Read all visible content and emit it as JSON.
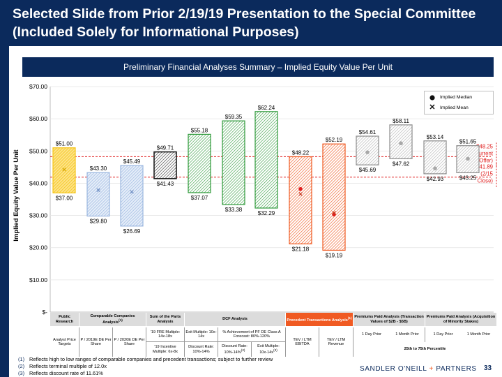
{
  "header": {
    "title_line1": "Selected Slide from Prior 2/19/19 Presentation to the Special Committee",
    "title_line2": "(Included Solely for Informational Purposes)",
    "section_title": "Preliminary Financial Analyses Summary – Implied Equity Value Per Unit"
  },
  "colors": {
    "navy": "#0b2a5c",
    "orange": "#f05a22",
    "yellow": "#f5c518",
    "blue": "#9bb7e0",
    "black": "#111111",
    "green": "#2e9a3a",
    "gray": "#8c8c8c",
    "ref_line": "#e02020"
  },
  "chart_data": {
    "type": "floating-bar",
    "ylabel": "Implied Equity Value Per Unit",
    "ylim": [
      0,
      70
    ],
    "yticks": [
      0,
      10,
      20,
      30,
      40,
      50,
      60,
      70
    ],
    "ytick_labels": [
      "$-",
      "$10.00",
      "$20.00",
      "$30.00",
      "$40.00",
      "$50.00",
      "$60.00",
      "$70.00"
    ],
    "legend": {
      "median_label": "Implied Median",
      "mean_label": "Implied Mean",
      "placement": "top-right"
    },
    "reference_lines": [
      {
        "value": 48.25,
        "label_lines": [
          "$48.25",
          "(Current",
          "Offer)"
        ]
      },
      {
        "value": 41.89,
        "label_lines": [
          "$41.89",
          "(2/15",
          "Close)"
        ]
      }
    ],
    "bars": [
      {
        "low": 37.0,
        "high": 51.0,
        "low_label": "$37.00",
        "high_label": "$51.00",
        "color": "yellow",
        "mean": 44.2
      },
      {
        "low": 29.8,
        "high": 43.3,
        "low_label": "$29.80",
        "high_label": "$43.30",
        "color": "blue",
        "mean": 37.8
      },
      {
        "low": 26.69,
        "high": 45.49,
        "low_label": "$26.69",
        "high_label": "$45.49",
        "color": "blue",
        "mean": 37.3
      },
      {
        "low": 41.43,
        "high": 49.71,
        "low_label": "$41.43",
        "high_label": "$49.71",
        "color": "black"
      },
      {
        "low": 37.07,
        "high": 55.18,
        "low_label": "$37.07",
        "high_label": "$55.18",
        "color": "green"
      },
      {
        "low": 33.38,
        "high": 59.35,
        "low_label": "$33.38",
        "high_label": "$59.35",
        "color": "green"
      },
      {
        "low": 32.29,
        "high": 62.24,
        "low_label": "$32.29",
        "high_label": "$62.24",
        "color": "green"
      },
      {
        "low": 21.18,
        "high": 48.22,
        "low_label": "$21.18",
        "high_label": "$48.22",
        "color": "orange",
        "median": 38.2,
        "mean": 36.6
      },
      {
        "low": 19.19,
        "high": 52.19,
        "low_label": "$19.19",
        "high_label": "$52.19",
        "color": "orange",
        "median": 30.3,
        "mean": 30.8
      },
      {
        "low": 45.69,
        "high": 54.61,
        "low_label": "$45.69",
        "high_label": "$54.61",
        "color": "gray",
        "median": 49.6
      },
      {
        "low": 47.62,
        "high": 58.11,
        "low_label": "$47.62",
        "high_label": "$58.11",
        "color": "gray",
        "median": 52.4
      },
      {
        "low": 42.93,
        "high": 53.14,
        "low_label": "$42.93",
        "high_label": "$53.14",
        "color": "gray",
        "median": 44.6
      },
      {
        "low": 43.25,
        "high": 51.65,
        "low_label": "$43.25",
        "high_label": "$51.65",
        "color": "gray",
        "median": 47.6
      }
    ]
  },
  "table": {
    "groups": [
      {
        "label": "Public Research",
        "orange": false
      },
      {
        "label": "Comparable Companies Analysis",
        "sup": "(1)",
        "orange": false
      },
      {
        "label": "Sum of the Parts Analysis",
        "orange": false
      },
      {
        "label": "DCF Analysis",
        "orange": false
      },
      {
        "label": "Precedent Transactions Analysis",
        "sup": "(1)",
        "orange": true
      },
      {
        "label": "Premiums Paid Analysis (Transaction Values of $2B - $5B)",
        "orange": false
      },
      {
        "label": "Premiums Paid Analysis (Acquisition of Minority Stakes)",
        "orange": false
      }
    ],
    "sub": {
      "c1": "Analyst Price Targets",
      "c2": "P / 2019E DE Per Share",
      "c3": "P / 2020E DE Per Share",
      "c4a": "'19 FRE Multiple: 14x-18x",
      "c4b": "'19 Incentive Multiple: 6x-8x",
      "c5a": "Exit Multiple: 10x-14x",
      "c5b": "Discount Rate: 10%-14%",
      "c6a": "% Achievement of PF DE Class A Forecast: 80%-120%",
      "c6b1": "Discount Rate:",
      "c6b2": "10%-14%",
      "c6b2_sup": "(2)",
      "c6c1": "Exit Multiple:",
      "c6c2": "10x-14x",
      "c6c2_sup": "(3)",
      "c7": "TEV / LTM EBITDA",
      "c8": "TEV / LTM Revenue",
      "c9": "1 Day Prior",
      "c10": "1 Month Prior",
      "c11": "1 Day Prior",
      "c12": "1 Month Prior",
      "pct": "25th to 75th Percentile"
    }
  },
  "footnotes": [
    {
      "num": "(1)",
      "text": "Reflects high to low ranges of comparable companies and precedent transactions; subject to further review"
    },
    {
      "num": "(2)",
      "text": "Reflects terminal multiple of 12.0x"
    },
    {
      "num": "(3)",
      "text": "Reflects discount rate of 11.61%"
    }
  ],
  "brand": {
    "left": "SANDLER O'NEILL",
    "plus": "+",
    "right": "PARTNERS"
  },
  "page_number": "33"
}
